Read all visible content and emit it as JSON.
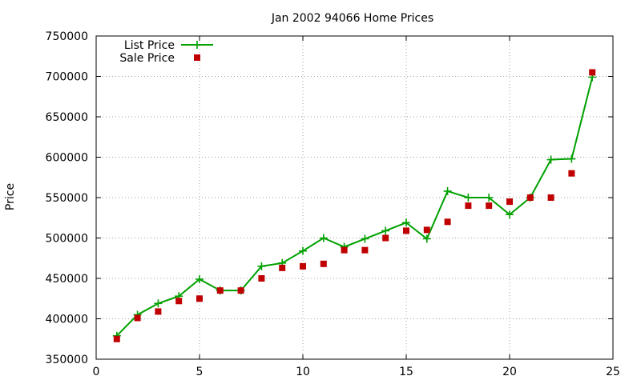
{
  "chart_data": {
    "type": "line",
    "title": "Jan 2002 94066 Home Prices",
    "xlabel": "",
    "ylabel": "Price",
    "xlim": [
      0,
      25
    ],
    "ylim": [
      350000,
      750000
    ],
    "xticks": [
      0,
      5,
      10,
      15,
      20,
      25
    ],
    "yticks": [
      350000,
      400000,
      450000,
      500000,
      550000,
      600000,
      650000,
      700000,
      750000
    ],
    "grid": true,
    "legend_position": "top-left",
    "series": [
      {
        "name": "List Price",
        "style": "line-with-plus-markers",
        "color": "#00a000",
        "x": [
          1,
          2,
          3,
          4,
          5,
          6,
          7,
          8,
          9,
          10,
          11,
          12,
          13,
          14,
          15,
          16,
          17,
          18,
          19,
          20,
          21,
          22,
          23,
          24
        ],
        "values": [
          379000,
          405000,
          419000,
          428000,
          449000,
          435000,
          435000,
          465000,
          469000,
          484000,
          500000,
          489000,
          499000,
          509000,
          519000,
          499000,
          558000,
          550000,
          550000,
          529000,
          550000,
          597000,
          598000,
          699000
        ]
      },
      {
        "name": "Sale Price",
        "style": "square-markers",
        "color": "#c00000",
        "x": [
          1,
          2,
          3,
          4,
          5,
          6,
          7,
          8,
          9,
          10,
          11,
          12,
          13,
          14,
          15,
          16,
          17,
          18,
          19,
          20,
          21,
          22,
          23,
          24
        ],
        "values": [
          375000,
          401000,
          409000,
          422000,
          425000,
          435000,
          435000,
          450000,
          463000,
          465000,
          468000,
          485000,
          485000,
          500000,
          509000,
          510000,
          520000,
          540000,
          540000,
          545000,
          550000,
          550000,
          580000,
          705000
        ]
      }
    ]
  }
}
